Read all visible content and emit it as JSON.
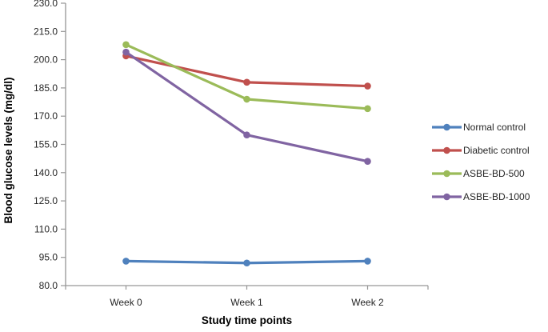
{
  "chart_data": {
    "type": "line",
    "title": "",
    "xlabel": "Study time points",
    "ylabel": "Blood glucose levels (mg/dl)",
    "categories": [
      "Week 0",
      "Week 1",
      "Week 2"
    ],
    "series": [
      {
        "name": "Normal control",
        "color": "#4F81BD",
        "values": [
          93,
          92,
          93
        ]
      },
      {
        "name": "Diabetic control",
        "color": "#C0504D",
        "values": [
          202,
          188,
          186
        ]
      },
      {
        "name": "ASBE-BD-500",
        "color": "#9BBB59",
        "values": [
          208,
          179,
          174
        ]
      },
      {
        "name": "ASBE-BD-1000",
        "color": "#8064A2",
        "values": [
          204,
          160,
          146
        ]
      }
    ],
    "ylim": [
      80,
      230
    ],
    "yticks": [
      230,
      215,
      200,
      185,
      170,
      155,
      140,
      125,
      110,
      95,
      80
    ],
    "ytick_decimals": 1,
    "grid": false,
    "legend_position": "right",
    "marker": "circle"
  }
}
